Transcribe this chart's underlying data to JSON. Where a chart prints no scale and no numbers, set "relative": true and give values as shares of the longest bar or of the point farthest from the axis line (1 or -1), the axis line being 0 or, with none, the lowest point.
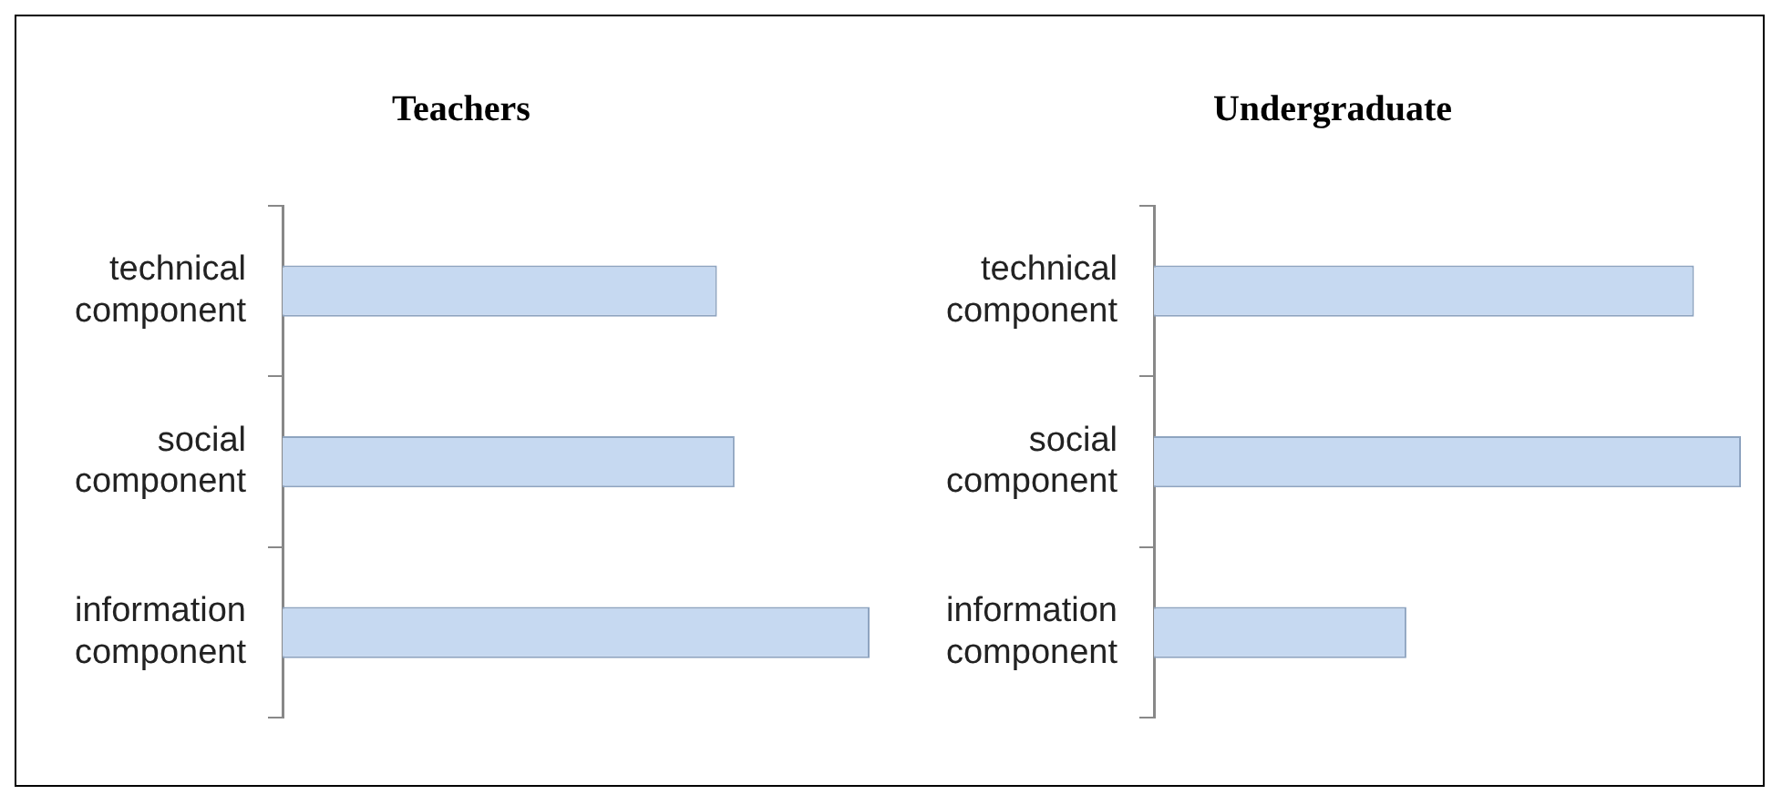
{
  "chart_data": [
    {
      "type": "bar",
      "orientation": "horizontal",
      "relative": true,
      "title": "Teachers",
      "categories": [
        "technical component",
        "social component",
        "information component"
      ],
      "values": [
        0.74,
        0.77,
        1
      ],
      "color": "#c6d9f1",
      "grid": false
    },
    {
      "type": "bar",
      "orientation": "horizontal",
      "relative": true,
      "title": "Undergraduate",
      "categories": [
        "technical component",
        "social component",
        "information component"
      ],
      "values": [
        0.92,
        1,
        0.43
      ],
      "color": "#c6d9f1",
      "grid": false
    }
  ]
}
